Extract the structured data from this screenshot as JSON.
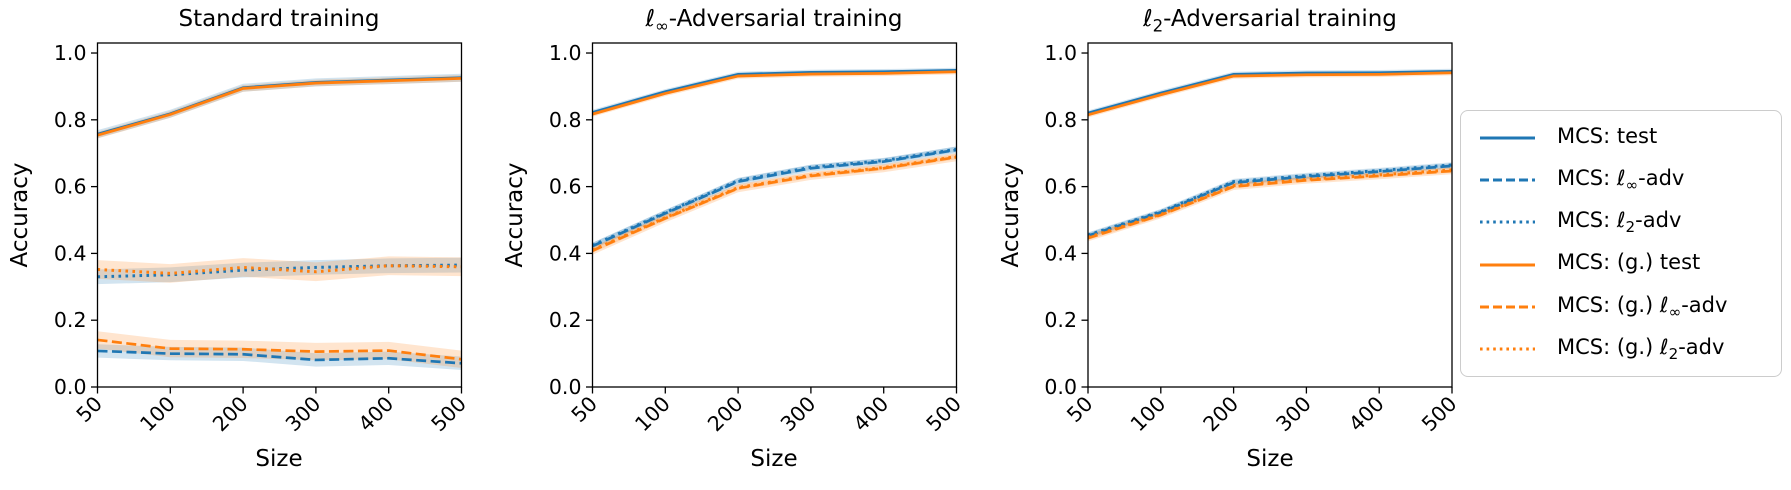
{
  "figure": {
    "background": "#ffffff"
  },
  "colors": {
    "blue": "#1f77b4",
    "orange": "#ff7f0e",
    "band_alpha": 0.2,
    "axis": "#000000",
    "legend_border": "#cccccc"
  },
  "axis": {
    "xlabel": "Size",
    "ylabel": "Accuracy",
    "x_ticks": [
      "50",
      "100",
      "200",
      "300",
      "400",
      "500"
    ],
    "y_ticks": [
      "0.0",
      "0.2",
      "0.4",
      "0.6",
      "0.8",
      "1.0"
    ],
    "y_tick_values": [
      0.0,
      0.2,
      0.4,
      0.6,
      0.8,
      1.0
    ],
    "x_tick_rotation_deg": 45
  },
  "legend": {
    "position": "right",
    "items": [
      {
        "label": "MCS: test",
        "pre": "MCS: test",
        "sub": "",
        "post": "",
        "color": "blue",
        "style": "solid"
      },
      {
        "label": "MCS: ℓ∞-adv",
        "pre": "MCS: ℓ",
        "sub": "∞",
        "post": "-adv",
        "color": "blue",
        "style": "dashed"
      },
      {
        "label": "MCS: ℓ2-adv",
        "pre": "MCS: ℓ",
        "sub": "2",
        "post": "-adv",
        "color": "blue",
        "style": "dotted"
      },
      {
        "label": "MCS: (g.) test",
        "pre": "MCS: (g.) test",
        "sub": "",
        "post": "",
        "color": "orange",
        "style": "solid"
      },
      {
        "label": "MCS: (g.) ℓ∞-adv",
        "pre": "MCS: (g.) ℓ",
        "sub": "∞",
        "post": "-adv",
        "color": "orange",
        "style": "dashed"
      },
      {
        "label": "MCS: (g.) ℓ2-adv",
        "pre": "MCS: (g.) ℓ",
        "sub": "2",
        "post": "-adv",
        "color": "orange",
        "style": "dotted"
      }
    ]
  },
  "chart_data": [
    {
      "type": "line",
      "title": "Standard training",
      "title_parts": {
        "pre": "Standard training",
        "sub": "",
        "post": ""
      },
      "xlabel": "Size",
      "ylabel": "Accuracy",
      "x": [
        50,
        100,
        200,
        300,
        400,
        500
      ],
      "x_spacing": "equal",
      "ylim": [
        0.0,
        1.03
      ],
      "series": [
        {
          "name": "MCS: test",
          "color": "blue",
          "style": "solid",
          "band": 0.012,
          "values": [
            0.757,
            0.818,
            0.896,
            0.912,
            0.919,
            0.926
          ]
        },
        {
          "name": "MCS: ℓ∞-adv",
          "color": "blue",
          "style": "dashed",
          "band": 0.02,
          "values": [
            0.108,
            0.1,
            0.098,
            0.081,
            0.086,
            0.071
          ]
        },
        {
          "name": "MCS: ℓ2-adv",
          "color": "blue",
          "style": "dotted",
          "band": 0.022,
          "values": [
            0.33,
            0.336,
            0.35,
            0.358,
            0.363,
            0.365
          ]
        },
        {
          "name": "MCS: (g.) test",
          "color": "orange",
          "style": "solid",
          "band": 0.01,
          "values": [
            0.754,
            0.816,
            0.894,
            0.91,
            0.917,
            0.924
          ]
        },
        {
          "name": "MCS: (g.) ℓ∞-adv",
          "color": "orange",
          "style": "dashed",
          "band": 0.026,
          "values": [
            0.141,
            0.115,
            0.113,
            0.106,
            0.109,
            0.083
          ]
        },
        {
          "name": "MCS: (g.) ℓ2-adv",
          "color": "orange",
          "style": "dotted",
          "band": 0.028,
          "values": [
            0.352,
            0.34,
            0.358,
            0.345,
            0.363,
            0.36
          ]
        }
      ]
    },
    {
      "type": "line",
      "title": "ℓ∞-Adversarial training",
      "title_parts": {
        "pre": "ℓ",
        "sub": "∞",
        "post": "-Adversarial training"
      },
      "xlabel": "Size",
      "ylabel": "Accuracy",
      "x": [
        50,
        100,
        200,
        300,
        400,
        500
      ],
      "x_spacing": "equal",
      "ylim": [
        0.0,
        1.03
      ],
      "series": [
        {
          "name": "MCS: test",
          "color": "blue",
          "style": "solid",
          "band": 0.008,
          "values": [
            0.822,
            0.884,
            0.936,
            0.942,
            0.944,
            0.948
          ]
        },
        {
          "name": "MCS: ℓ∞-adv",
          "color": "blue",
          "style": "dashed",
          "band": 0.01,
          "values": [
            0.422,
            0.52,
            0.615,
            0.655,
            0.675,
            0.71
          ]
        },
        {
          "name": "MCS: ℓ2-adv",
          "color": "blue",
          "style": "dotted",
          "band": 0.008,
          "values": [
            0.424,
            0.522,
            0.618,
            0.658,
            0.678,
            0.712
          ]
        },
        {
          "name": "MCS: (g.) test",
          "color": "orange",
          "style": "solid",
          "band": 0.008,
          "values": [
            0.817,
            0.879,
            0.931,
            0.937,
            0.939,
            0.944
          ]
        },
        {
          "name": "MCS: (g.) ℓ∞-adv",
          "color": "orange",
          "style": "dashed",
          "band": 0.012,
          "values": [
            0.408,
            0.505,
            0.595,
            0.632,
            0.655,
            0.688
          ]
        },
        {
          "name": "MCS: (g.) ℓ2-adv",
          "color": "orange",
          "style": "dotted",
          "band": 0.008,
          "values": [
            0.41,
            0.507,
            0.597,
            0.634,
            0.657,
            0.69
          ]
        }
      ]
    },
    {
      "type": "line",
      "title": "ℓ2-Adversarial training",
      "title_parts": {
        "pre": "ℓ",
        "sub": "2",
        "post": "-Adversarial training"
      },
      "xlabel": "Size",
      "ylabel": "Accuracy",
      "x": [
        50,
        100,
        200,
        300,
        400,
        500
      ],
      "x_spacing": "equal",
      "ylim": [
        0.0,
        1.03
      ],
      "series": [
        {
          "name": "MCS: test",
          "color": "blue",
          "style": "solid",
          "band": 0.008,
          "values": [
            0.82,
            0.88,
            0.936,
            0.94,
            0.941,
            0.945
          ]
        },
        {
          "name": "MCS: ℓ∞-adv",
          "color": "blue",
          "style": "dashed",
          "band": 0.008,
          "values": [
            0.453,
            0.523,
            0.612,
            0.63,
            0.645,
            0.662
          ]
        },
        {
          "name": "MCS: ℓ2-adv",
          "color": "blue",
          "style": "dotted",
          "band": 0.008,
          "values": [
            0.455,
            0.525,
            0.615,
            0.633,
            0.648,
            0.665
          ]
        },
        {
          "name": "MCS: (g.) test",
          "color": "orange",
          "style": "solid",
          "band": 0.008,
          "values": [
            0.815,
            0.875,
            0.931,
            0.935,
            0.936,
            0.941
          ]
        },
        {
          "name": "MCS: (g.) ℓ∞-adv",
          "color": "orange",
          "style": "dashed",
          "band": 0.01,
          "values": [
            0.446,
            0.515,
            0.6,
            0.619,
            0.632,
            0.647
          ]
        },
        {
          "name": "MCS: (g.) ℓ2-adv",
          "color": "orange",
          "style": "dotted",
          "band": 0.008,
          "values": [
            0.448,
            0.517,
            0.603,
            0.622,
            0.635,
            0.65
          ]
        }
      ]
    }
  ]
}
